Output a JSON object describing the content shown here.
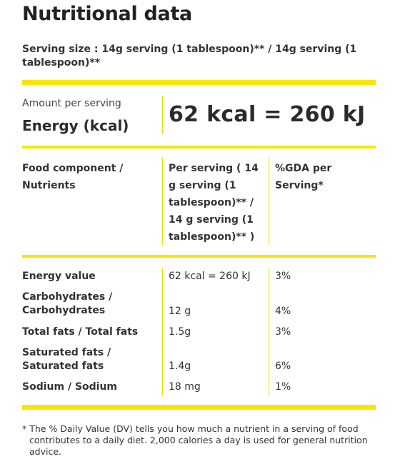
{
  "title": "Nutritional data",
  "serving_size": "Serving size : 14g serving (1 tablespoon)** / 14g serving (1 tablespoon)**",
  "amount_per_serving": "Amount per serving",
  "energy_label": "Energy (kcal)",
  "energy_value": "62 kcal = 260 kJ",
  "table": {
    "headers": [
      "Food component / Nutrients",
      "Per serving ( 14 g serving (1 tablespoon)** / 14 g serving (1 tablespoon)** )",
      "%GDA per Serving*"
    ],
    "rows": [
      {
        "name": "Energy value",
        "per_serving": "62 kcal = 260 kJ",
        "gda": "3%"
      },
      {
        "name": "Carbohydrates / Carbohydrates",
        "per_serving": "12 g",
        "gda": "4%"
      },
      {
        "name": "Total fats / Total fats",
        "per_serving": "1.5g",
        "gda": "3%"
      },
      {
        "name": "Saturated fats / Saturated fats",
        "per_serving": "1.4g",
        "gda": "6%"
      },
      {
        "name": "Sodium / Sodium",
        "per_serving": "18 mg",
        "gda": "1%"
      }
    ]
  },
  "footnote": "* The % Daily Value (DV) tells you how much a nutrient in a serving of food contributes to a daily diet. 2,000 calories a day is used for general nutrition advice.",
  "colors": {
    "accent": "#f7e600",
    "text": "#2b2b2b"
  }
}
